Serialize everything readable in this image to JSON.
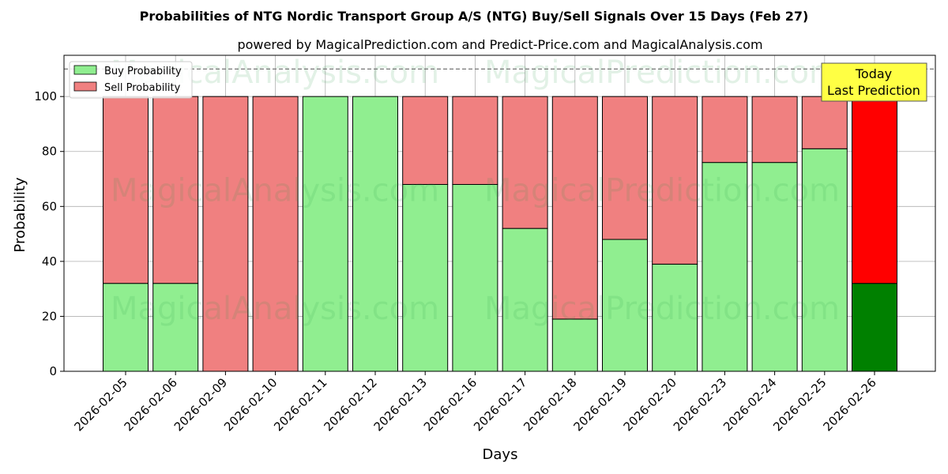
{
  "chart_data": {
    "type": "bar",
    "stacked": true,
    "title": "Probabilities of NTG Nordic Transport Group A/S (NTG) Buy/Sell Signals Over 15 Days (Feb 27)",
    "subtitle": "powered by MagicalPrediction.com and Predict-Price.com and MagicalAnalysis.com",
    "xlabel": "Days",
    "ylabel": "Probability",
    "ylim": [
      0,
      115
    ],
    "yticks": [
      0,
      20,
      40,
      60,
      80,
      100
    ],
    "grid": true,
    "legend_position": "top-left",
    "categories": [
      "2026-02-05",
      "2026-02-06",
      "2026-02-09",
      "2026-02-10",
      "2026-02-11",
      "2026-02-12",
      "2026-02-13",
      "2026-02-16",
      "2026-02-17",
      "2026-02-18",
      "2026-02-19",
      "2026-02-20",
      "2026-02-23",
      "2026-02-24",
      "2026-02-25",
      "2026-02-26"
    ],
    "series": [
      {
        "name": "Buy Probability",
        "color": "#90ee90",
        "values": [
          32,
          32,
          0,
          0,
          100,
          100,
          68,
          68,
          52,
          19,
          48,
          39,
          76,
          76,
          81,
          32
        ]
      },
      {
        "name": "Sell Probability",
        "color": "#f08080",
        "values": [
          68,
          68,
          100,
          100,
          0,
          0,
          32,
          32,
          48,
          81,
          52,
          61,
          24,
          24,
          19,
          68
        ]
      }
    ],
    "highlight": {
      "index": 15,
      "buy_color": "#008000",
      "sell_color": "#ff0000"
    },
    "reference_line": {
      "y": 110,
      "style": "dashed"
    },
    "annotation": {
      "line1": "Today",
      "line2": "Last Prediction"
    },
    "watermarks": [
      "MagicalAnalysis.com",
      "MagicalPrediction.com"
    ]
  }
}
